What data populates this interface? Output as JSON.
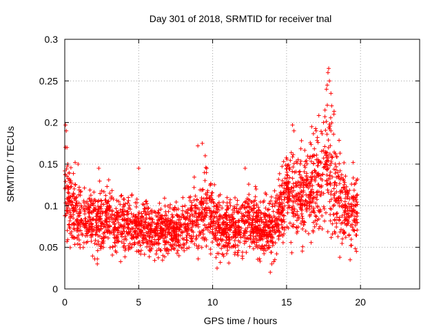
{
  "chart_data": {
    "type": "scatter",
    "title": "Day 301 of 2018, SRMTID for receiver tnal",
    "xlabel": "GPS time / hours",
    "ylabel": "SRMTID / TECUs",
    "xlim": [
      0,
      24
    ],
    "ylim": [
      0,
      0.3
    ],
    "x_ticks": [
      0,
      5,
      10,
      15,
      20
    ],
    "x_tick_labels": [
      "0",
      "5",
      "10",
      "15",
      "20"
    ],
    "y_ticks": [
      0,
      0.05,
      0.1,
      0.15,
      0.2,
      0.25,
      0.3
    ],
    "y_tick_labels": [
      "0",
      "0.05",
      "0.1",
      "0.15",
      "0.2",
      "0.25",
      "0.3"
    ],
    "grid": true,
    "marker": "plus",
    "color": "#ff0000",
    "x_range_observed": [
      0,
      19.8
    ],
    "density_points_per_hour": 135,
    "envelope": [
      {
        "x": 0.0,
        "mean": 0.118,
        "spread": 0.025
      },
      {
        "x": 0.4,
        "mean": 0.1,
        "spread": 0.02
      },
      {
        "x": 1.0,
        "mean": 0.085,
        "spread": 0.018
      },
      {
        "x": 2.0,
        "mean": 0.08,
        "spread": 0.018
      },
      {
        "x": 3.0,
        "mean": 0.082,
        "spread": 0.017
      },
      {
        "x": 4.0,
        "mean": 0.078,
        "spread": 0.016
      },
      {
        "x": 5.0,
        "mean": 0.076,
        "spread": 0.016
      },
      {
        "x": 6.0,
        "mean": 0.072,
        "spread": 0.015
      },
      {
        "x": 7.0,
        "mean": 0.068,
        "spread": 0.014
      },
      {
        "x": 8.0,
        "mean": 0.075,
        "spread": 0.016
      },
      {
        "x": 9.0,
        "mean": 0.085,
        "spread": 0.018
      },
      {
        "x": 9.7,
        "mean": 0.095,
        "spread": 0.02
      },
      {
        "x": 10.5,
        "mean": 0.07,
        "spread": 0.016
      },
      {
        "x": 11.5,
        "mean": 0.075,
        "spread": 0.017
      },
      {
        "x": 12.5,
        "mean": 0.085,
        "spread": 0.018
      },
      {
        "x": 13.5,
        "mean": 0.07,
        "spread": 0.016
      },
      {
        "x": 14.2,
        "mean": 0.08,
        "spread": 0.018
      },
      {
        "x": 15.0,
        "mean": 0.115,
        "spread": 0.022
      },
      {
        "x": 15.7,
        "mean": 0.105,
        "spread": 0.024
      },
      {
        "x": 16.5,
        "mean": 0.12,
        "spread": 0.028
      },
      {
        "x": 17.5,
        "mean": 0.135,
        "spread": 0.03
      },
      {
        "x": 18.0,
        "mean": 0.15,
        "spread": 0.032
      },
      {
        "x": 18.5,
        "mean": 0.115,
        "spread": 0.025
      },
      {
        "x": 19.2,
        "mean": 0.095,
        "spread": 0.022
      },
      {
        "x": 19.8,
        "mean": 0.09,
        "spread": 0.02
      }
    ],
    "notable_points": [
      {
        "x": 0.05,
        "y": 0.197
      },
      {
        "x": 0.1,
        "y": 0.19
      },
      {
        "x": 0.15,
        "y": 0.17
      },
      {
        "x": 0.2,
        "y": 0.15
      },
      {
        "x": 0.7,
        "y": 0.152
      },
      {
        "x": 0.9,
        "y": 0.15
      },
      {
        "x": 2.3,
        "y": 0.145
      },
      {
        "x": 5.0,
        "y": 0.145
      },
      {
        "x": 9.0,
        "y": 0.172
      },
      {
        "x": 9.3,
        "y": 0.175
      },
      {
        "x": 9.5,
        "y": 0.16
      },
      {
        "x": 9.6,
        "y": 0.145
      },
      {
        "x": 12.2,
        "y": 0.145
      },
      {
        "x": 13.9,
        "y": 0.02
      },
      {
        "x": 14.0,
        "y": 0.03
      },
      {
        "x": 15.4,
        "y": 0.197
      },
      {
        "x": 15.5,
        "y": 0.19
      },
      {
        "x": 16.7,
        "y": 0.195
      },
      {
        "x": 17.0,
        "y": 0.19
      },
      {
        "x": 17.5,
        "y": 0.2
      },
      {
        "x": 17.6,
        "y": 0.215
      },
      {
        "x": 17.7,
        "y": 0.24
      },
      {
        "x": 17.75,
        "y": 0.245
      },
      {
        "x": 17.8,
        "y": 0.26
      },
      {
        "x": 17.85,
        "y": 0.265
      },
      {
        "x": 17.9,
        "y": 0.25
      },
      {
        "x": 18.0,
        "y": 0.235
      },
      {
        "x": 18.05,
        "y": 0.22
      },
      {
        "x": 18.2,
        "y": 0.21
      },
      {
        "x": 19.3,
        "y": 0.035
      },
      {
        "x": 18.6,
        "y": 0.038
      },
      {
        "x": 19.5,
        "y": 0.152
      },
      {
        "x": 2.2,
        "y": 0.03
      },
      {
        "x": 10.3,
        "y": 0.025
      }
    ]
  }
}
